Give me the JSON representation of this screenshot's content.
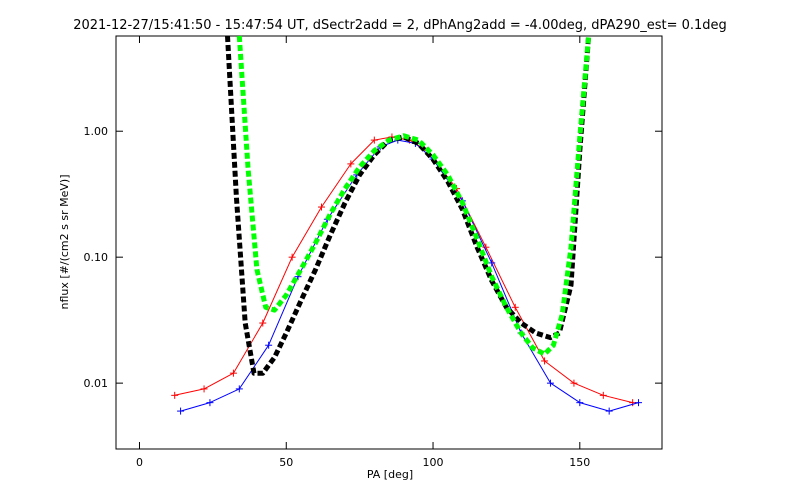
{
  "chart_data": {
    "type": "line",
    "title": "2021-12-27/15:41:50 - 15:47:54 UT, dSectr2add = 2, dPhAng2add = -4.00deg, dPA290_est=   0.1deg",
    "xlabel": "PA [deg]",
    "ylabel": "nflux [#/(cm2 s sr MeV)]",
    "xlim": [
      -8,
      178
    ],
    "ylim": [
      0.003,
      5.7
    ],
    "yscale": "log",
    "grid": false,
    "legend": "none",
    "x_ticks": [
      {
        "value": 0,
        "label": "0"
      },
      {
        "value": 50,
        "label": "50"
      },
      {
        "value": 100,
        "label": "100"
      },
      {
        "value": 150,
        "label": "150"
      }
    ],
    "y_ticks": [
      {
        "value": 0.01,
        "label": "0.01"
      },
      {
        "value": 0.1,
        "label": "0.10"
      },
      {
        "value": 1.0,
        "label": "1.00"
      }
    ],
    "colors": {
      "red_series": "#ff0000",
      "blue_series": "#0000ff",
      "black_fit": "#000000",
      "green_fit": "#00ff00",
      "axes": "#000000"
    },
    "series": [
      {
        "color": "#ff0000",
        "style": "line+plus",
        "x": [
          12,
          22,
          32,
          42,
          52,
          62,
          72,
          80,
          86,
          92,
          98,
          108,
          118,
          128,
          138,
          148,
          158,
          168
        ],
        "y": [
          0.008,
          0.009,
          0.012,
          0.03,
          0.1,
          0.25,
          0.55,
          0.85,
          0.9,
          0.85,
          0.7,
          0.35,
          0.12,
          0.04,
          0.015,
          0.01,
          0.008,
          0.007
        ]
      },
      {
        "color": "#0000ff",
        "style": "line+plus",
        "x": [
          14,
          24,
          34,
          44,
          54,
          64,
          74,
          82,
          88,
          94,
          100,
          110,
          120,
          130,
          140,
          150,
          160,
          170
        ],
        "y": [
          0.006,
          0.007,
          0.009,
          0.02,
          0.07,
          0.2,
          0.45,
          0.75,
          0.85,
          0.8,
          0.6,
          0.28,
          0.09,
          0.025,
          0.01,
          0.007,
          0.006,
          0.007
        ]
      },
      {
        "color": "#000000",
        "style": "dashed-thick",
        "x": [
          30,
          33,
          36,
          39,
          42,
          46,
          50,
          55,
          60,
          65,
          70,
          75,
          80,
          85,
          90,
          95,
          100,
          105,
          110,
          115,
          120,
          125,
          130,
          135,
          140,
          143,
          147,
          150,
          153
        ],
        "y": [
          5.7,
          0.3,
          0.03,
          0.012,
          0.012,
          0.016,
          0.025,
          0.045,
          0.08,
          0.15,
          0.27,
          0.45,
          0.65,
          0.85,
          0.9,
          0.8,
          0.6,
          0.4,
          0.24,
          0.12,
          0.065,
          0.04,
          0.03,
          0.025,
          0.023,
          0.025,
          0.06,
          0.7,
          5.7
        ]
      },
      {
        "color": "#00ff00",
        "style": "dashed-thick",
        "x": [
          34,
          37,
          40,
          43,
          46,
          50,
          55,
          60,
          65,
          70,
          75,
          80,
          85,
          90,
          95,
          100,
          105,
          110,
          115,
          120,
          125,
          130,
          134,
          138,
          141,
          144,
          147,
          150,
          153
        ],
        "y": [
          5.7,
          0.5,
          0.08,
          0.04,
          0.038,
          0.05,
          0.08,
          0.13,
          0.22,
          0.35,
          0.52,
          0.7,
          0.85,
          0.92,
          0.85,
          0.65,
          0.45,
          0.27,
          0.14,
          0.07,
          0.04,
          0.025,
          0.019,
          0.017,
          0.02,
          0.035,
          0.12,
          0.9,
          5.7
        ]
      }
    ]
  }
}
